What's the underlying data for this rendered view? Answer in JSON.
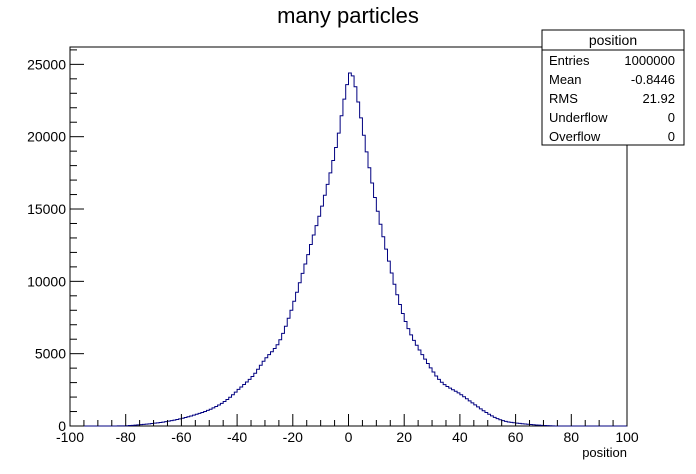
{
  "chart_data": {
    "type": "histogram",
    "title": "many particles",
    "xlabel": "position",
    "ylabel": "",
    "xlim": [
      -100,
      100
    ],
    "ylim": [
      0,
      26200
    ],
    "x_ticks": [
      -100,
      -80,
      -60,
      -40,
      -20,
      0,
      20,
      40,
      60,
      80,
      100
    ],
    "y_ticks": [
      0,
      5000,
      10000,
      15000,
      20000,
      25000
    ],
    "bin_width": 1,
    "bin_start": -100,
    "series": [
      {
        "color": "#000080",
        "values": [
          0,
          0,
          0,
          0,
          0,
          0,
          0,
          0,
          0,
          0,
          0,
          0,
          0,
          0,
          0,
          0,
          2,
          5,
          8,
          12,
          20,
          32,
          45,
          60,
          75,
          92,
          110,
          130,
          150,
          170,
          195,
          220,
          245,
          270,
          300,
          335,
          370,
          410,
          450,
          495,
          540,
          590,
          640,
          695,
          750,
          810,
          870,
          935,
          1005,
          1080,
          1160,
          1250,
          1345,
          1450,
          1565,
          1690,
          1830,
          1985,
          2160,
          2340,
          2530,
          2700,
          2870,
          3040,
          3220,
          3420,
          3650,
          3920,
          4200,
          4480,
          4720,
          4930,
          5130,
          5360,
          5620,
          5960,
          6400,
          6900,
          7450,
          8000,
          8620,
          9250,
          9900,
          10550,
          11200,
          11850,
          12550,
          13200,
          13850,
          14500,
          15200,
          15950,
          16700,
          17500,
          18350,
          19250,
          20250,
          21450,
          22600,
          23600,
          24400,
          24200,
          23450,
          22400,
          21300,
          20100,
          18950,
          17850,
          16800,
          15800,
          14850,
          13950,
          13080,
          12230,
          11400,
          10580,
          9800,
          9070,
          8400,
          7780,
          7220,
          6730,
          6300,
          5920,
          5580,
          5250,
          4930,
          4620,
          4320,
          4020,
          3730,
          3460,
          3220,
          3020,
          2860,
          2730,
          2620,
          2510,
          2400,
          2290,
          2160,
          2020,
          1880,
          1740,
          1600,
          1460,
          1320,
          1180,
          1050,
          930,
          810,
          700,
          600,
          510,
          430,
          370,
          320,
          280,
          250,
          225,
          200,
          178,
          158,
          140,
          122,
          105,
          88,
          72,
          58,
          45,
          33,
          22,
          14,
          8,
          4,
          2,
          0,
          0,
          0,
          0,
          0,
          0,
          0,
          0,
          0,
          0,
          0,
          0,
          0,
          0,
          0,
          0,
          0,
          0,
          0,
          0,
          0,
          0,
          0,
          0
        ]
      }
    ]
  },
  "stats_box": {
    "title": "position",
    "rows": [
      {
        "label": "Entries",
        "value": "1000000"
      },
      {
        "label": "Mean",
        "value": "-0.8446"
      },
      {
        "label": "RMS",
        "value": "21.92"
      },
      {
        "label": "Underflow",
        "value": "0"
      },
      {
        "label": "Overflow",
        "value": "0"
      }
    ]
  }
}
